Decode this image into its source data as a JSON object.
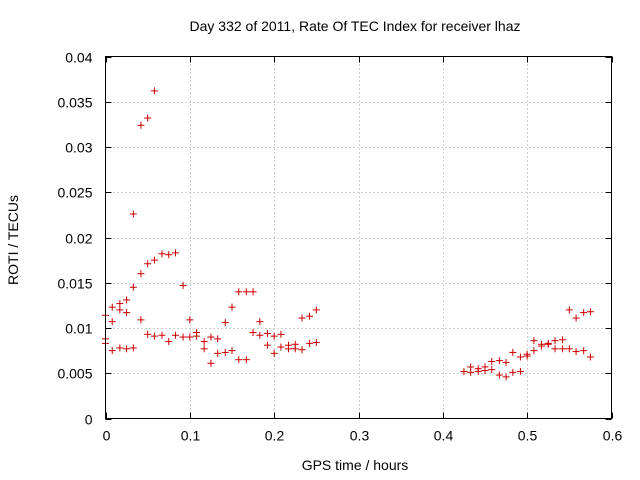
{
  "chart_data": {
    "type": "scatter",
    "title": "Day 332 of 2011, Rate Of TEC Index for receiver lhaz",
    "xlabel": "GPS time / hours",
    "ylabel": "ROTI / TECUs",
    "xlim": [
      0,
      0.6
    ],
    "ylim": [
      0,
      0.04
    ],
    "x_ticks": [
      "0",
      "0.1",
      "0.2",
      "0.3",
      "0.4",
      "0.5",
      "0.6"
    ],
    "y_ticks": [
      "0",
      "0.005",
      "0.01",
      "0.015",
      "0.02",
      "0.025",
      "0.03",
      "0.035",
      "0.04"
    ],
    "grid": true,
    "marker": "plus",
    "color": "#cc0000",
    "series": [
      {
        "points": [
          [
            0.0,
            0.0114
          ],
          [
            0.0,
            0.0088
          ],
          [
            0.0,
            0.0083
          ],
          [
            0.008,
            0.0107
          ],
          [
            0.008,
            0.0123
          ],
          [
            0.008,
            0.0075
          ],
          [
            0.017,
            0.0127
          ],
          [
            0.017,
            0.012
          ],
          [
            0.017,
            0.0078
          ],
          [
            0.025,
            0.0131
          ],
          [
            0.025,
            0.0117
          ],
          [
            0.025,
            0.0077
          ],
          [
            0.033,
            0.0226
          ],
          [
            0.033,
            0.0145
          ],
          [
            0.033,
            0.0078
          ],
          [
            0.042,
            0.0324
          ],
          [
            0.042,
            0.016
          ],
          [
            0.042,
            0.0109
          ],
          [
            0.05,
            0.0332
          ],
          [
            0.05,
            0.0171
          ],
          [
            0.05,
            0.0093
          ],
          [
            0.058,
            0.0362
          ],
          [
            0.058,
            0.0175
          ],
          [
            0.058,
            0.0091
          ],
          [
            0.067,
            0.0182
          ],
          [
            0.067,
            0.0092
          ],
          [
            0.075,
            0.0181
          ],
          [
            0.075,
            0.0085
          ],
          [
            0.083,
            0.0183
          ],
          [
            0.083,
            0.0092
          ],
          [
            0.092,
            0.0147
          ],
          [
            0.092,
            0.009
          ],
          [
            0.1,
            0.0109
          ],
          [
            0.1,
            0.009
          ],
          [
            0.108,
            0.0095
          ],
          [
            0.108,
            0.0091
          ],
          [
            0.117,
            0.0085
          ],
          [
            0.117,
            0.0077
          ],
          [
            0.125,
            0.009
          ],
          [
            0.125,
            0.0061
          ],
          [
            0.133,
            0.0088
          ],
          [
            0.133,
            0.0072
          ],
          [
            0.142,
            0.0106
          ],
          [
            0.142,
            0.0073
          ],
          [
            0.15,
            0.0123
          ],
          [
            0.15,
            0.0075
          ],
          [
            0.158,
            0.014
          ],
          [
            0.158,
            0.0065
          ],
          [
            0.167,
            0.014
          ],
          [
            0.167,
            0.0065
          ],
          [
            0.175,
            0.014
          ],
          [
            0.175,
            0.0095
          ],
          [
            0.183,
            0.0107
          ],
          [
            0.183,
            0.0092
          ],
          [
            0.192,
            0.0094
          ],
          [
            0.192,
            0.0081
          ],
          [
            0.2,
            0.0091
          ],
          [
            0.2,
            0.0072
          ],
          [
            0.208,
            0.0093
          ],
          [
            0.208,
            0.0079
          ],
          [
            0.217,
            0.0081
          ],
          [
            0.217,
            0.0077
          ],
          [
            0.225,
            0.0082
          ],
          [
            0.225,
            0.0077
          ],
          [
            0.233,
            0.0111
          ],
          [
            0.233,
            0.0076
          ],
          [
            0.242,
            0.0113
          ],
          [
            0.242,
            0.0083
          ],
          [
            0.25,
            0.012
          ],
          [
            0.25,
            0.0084
          ],
          [
            0.425,
            0.0052
          ],
          [
            0.433,
            0.0057
          ],
          [
            0.433,
            0.0051
          ],
          [
            0.442,
            0.0055
          ],
          [
            0.442,
            0.0052
          ],
          [
            0.45,
            0.0057
          ],
          [
            0.45,
            0.0053
          ],
          [
            0.458,
            0.0063
          ],
          [
            0.458,
            0.0054
          ],
          [
            0.467,
            0.0064
          ],
          [
            0.467,
            0.0048
          ],
          [
            0.475,
            0.0062
          ],
          [
            0.475,
            0.0046
          ],
          [
            0.483,
            0.0073
          ],
          [
            0.483,
            0.0051
          ],
          [
            0.492,
            0.0068
          ],
          [
            0.492,
            0.0052
          ],
          [
            0.5,
            0.0071
          ],
          [
            0.5,
            0.0069
          ],
          [
            0.508,
            0.0086
          ],
          [
            0.508,
            0.0075
          ],
          [
            0.517,
            0.0082
          ],
          [
            0.517,
            0.008
          ],
          [
            0.525,
            0.0083
          ],
          [
            0.525,
            0.0082
          ],
          [
            0.533,
            0.0086
          ],
          [
            0.533,
            0.0077
          ],
          [
            0.542,
            0.0087
          ],
          [
            0.542,
            0.0077
          ],
          [
            0.55,
            0.012
          ],
          [
            0.55,
            0.0077
          ],
          [
            0.558,
            0.0111
          ],
          [
            0.558,
            0.0074
          ],
          [
            0.567,
            0.0117
          ],
          [
            0.567,
            0.0075
          ],
          [
            0.575,
            0.0118
          ],
          [
            0.575,
            0.0068
          ]
        ]
      }
    ]
  }
}
